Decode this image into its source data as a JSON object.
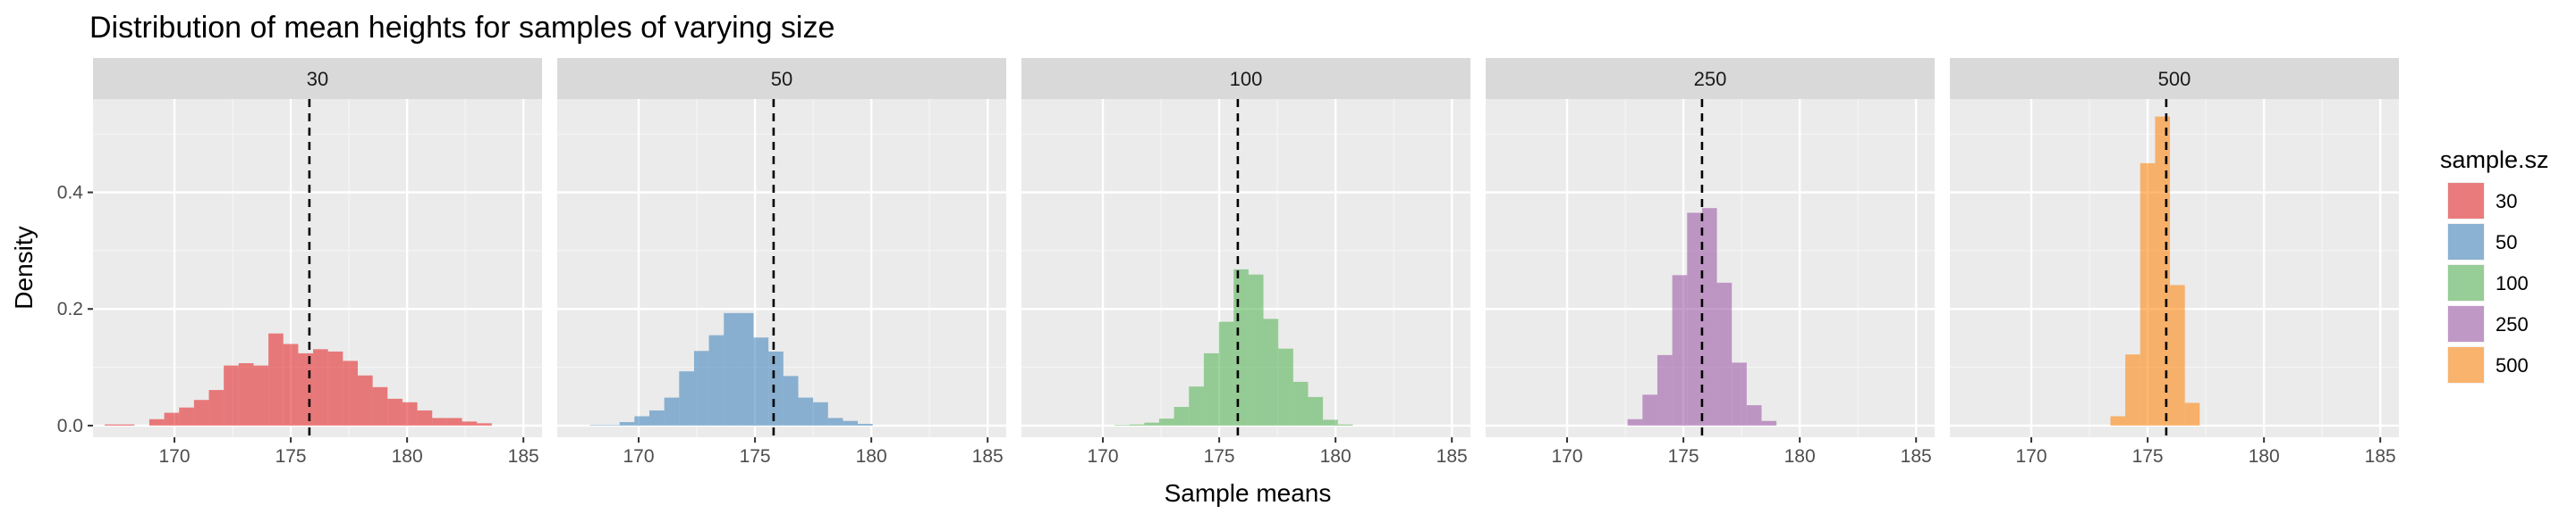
{
  "chart_data": {
    "type": "bar",
    "subtype": "faceted-histogram",
    "title": "Distribution of mean heights for samples of varying size",
    "xlabel": "Sample means",
    "ylabel": "Density",
    "xlim": [
      166.5,
      185.8
    ],
    "ylim": [
      -0.02,
      0.56
    ],
    "x_ticks": [
      170,
      175,
      180,
      185
    ],
    "y_ticks": [
      0.0,
      0.2,
      0.4
    ],
    "y_tick_labels": [
      "0.0",
      "0.2",
      "0.4"
    ],
    "grid": true,
    "bin_width": 0.64,
    "mean_line": {
      "x": 175.8,
      "style": "dashed",
      "color": "#000000"
    },
    "legend": {
      "title": "sample.sz",
      "position": "right",
      "entries": [
        "30",
        "50",
        "100",
        "250",
        "500"
      ]
    },
    "facets": [
      {
        "label": "30",
        "color": "#E41A1C",
        "bin_start": 167.0,
        "values": [
          0.002,
          0.002,
          0.0,
          0.011,
          0.022,
          0.031,
          0.044,
          0.061,
          0.103,
          0.107,
          0.103,
          0.158,
          0.14,
          0.124,
          0.131,
          0.127,
          0.111,
          0.086,
          0.066,
          0.046,
          0.04,
          0.026,
          0.013,
          0.013,
          0.007,
          0.004
        ]
      },
      {
        "label": "50",
        "color": "#377EB8",
        "bin_start": 167.9,
        "values": [
          0.001,
          0.001,
          0.006,
          0.016,
          0.026,
          0.048,
          0.093,
          0.128,
          0.155,
          0.193,
          0.193,
          0.151,
          0.127,
          0.085,
          0.048,
          0.04,
          0.013,
          0.008,
          0.003
        ]
      },
      {
        "label": "100",
        "color": "#4DAF4A",
        "bin_start": 170.5,
        "values": [
          0.001,
          0.002,
          0.005,
          0.012,
          0.032,
          0.067,
          0.124,
          0.178,
          0.268,
          0.259,
          0.183,
          0.132,
          0.075,
          0.049,
          0.01,
          0.002
        ]
      },
      {
        "label": "250",
        "color": "#984EA3",
        "bin_start": 172.6,
        "values": [
          0.011,
          0.053,
          0.121,
          0.258,
          0.365,
          0.373,
          0.245,
          0.108,
          0.035,
          0.008
        ]
      },
      {
        "label": "500",
        "color": "#FF7F00",
        "bin_start": 173.4,
        "values": [
          0.016,
          0.122,
          0.45,
          0.53,
          0.241,
          0.039
        ]
      }
    ]
  }
}
